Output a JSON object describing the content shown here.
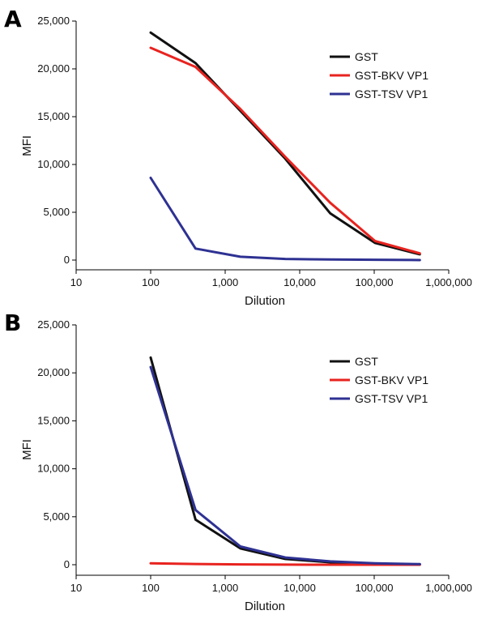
{
  "chart_data": [
    {
      "panel": "A",
      "type": "line",
      "xscale": "log",
      "xlabel": "Dilution",
      "ylabel": "MFI",
      "xlim": [
        10,
        1000000
      ],
      "ylim": [
        0,
        25000
      ],
      "xticks": [
        10,
        100,
        1000,
        10000,
        100000,
        1000000
      ],
      "xtick_labels": [
        "10",
        "100",
        "1,000",
        "10,000",
        "100,000",
        "1,000,000"
      ],
      "yticks": [
        0,
        5000,
        10000,
        15000,
        20000,
        25000
      ],
      "ytick_labels": [
        "0",
        "5,000",
        "10,000",
        "15,000",
        "20,000",
        "25,000"
      ],
      "legend_position": "top-right",
      "x": [
        100,
        400,
        1600,
        6400,
        25600,
        102400,
        409600
      ],
      "series": [
        {
          "name": "GST",
          "color": "#111111",
          "values": [
            23800,
            20600,
            15600,
            10600,
            4900,
            1800,
            600
          ]
        },
        {
          "name": "GST-BKV VP1",
          "color": "#e8231f",
          "values": [
            22200,
            20200,
            15800,
            10800,
            6000,
            2000,
            700
          ]
        },
        {
          "name": "GST-TSV VP1",
          "color": "#2e3192",
          "values": [
            8600,
            1200,
            350,
            120,
            60,
            30,
            0
          ]
        }
      ]
    },
    {
      "panel": "B",
      "type": "line",
      "xscale": "log",
      "xlabel": "Dilution",
      "ylabel": "MFI",
      "xlim": [
        10,
        1000000
      ],
      "ylim": [
        0,
        25000
      ],
      "xticks": [
        10,
        100,
        1000,
        10000,
        100000,
        1000000
      ],
      "xtick_labels": [
        "10",
        "100",
        "1,000",
        "10,000",
        "100,000",
        "1,000,000"
      ],
      "yticks": [
        0,
        5000,
        10000,
        15000,
        20000,
        25000
      ],
      "ytick_labels": [
        "0",
        "5,000",
        "10,000",
        "15,000",
        "20,000",
        "25,000"
      ],
      "legend_position": "top-right",
      "x": [
        100,
        400,
        1600,
        6400,
        25600,
        102400,
        409600
      ],
      "series": [
        {
          "name": "GST",
          "color": "#111111",
          "values": [
            21600,
            4700,
            1700,
            600,
            250,
            80,
            30
          ]
        },
        {
          "name": "GST-BKV VP1",
          "color": "#e8231f",
          "values": [
            150,
            80,
            30,
            10,
            0,
            0,
            0
          ]
        },
        {
          "name": "GST-TSV VP1",
          "color": "#2e3192",
          "values": [
            20600,
            5700,
            1900,
            750,
            350,
            150,
            60
          ]
        }
      ]
    }
  ]
}
